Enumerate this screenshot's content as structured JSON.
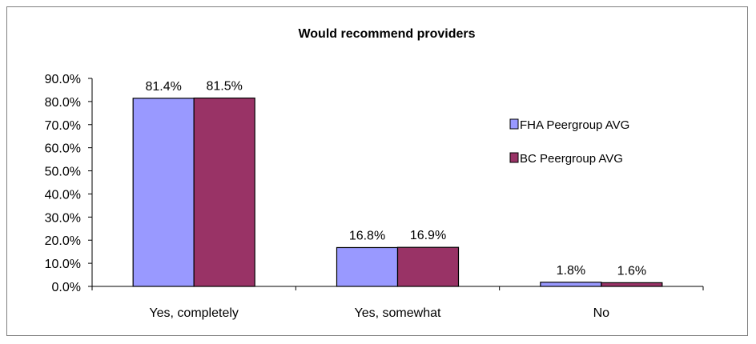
{
  "chart_data": {
    "type": "bar",
    "title": "Would recommend providers",
    "xlabel": "",
    "ylabel": "",
    "categories": [
      "Yes, completely",
      "Yes, somewhat",
      "No"
    ],
    "series": [
      {
        "name": "FHA Peergroup AVG",
        "values": [
          81.4,
          16.8,
          1.8
        ],
        "labels": [
          "81.4%",
          "16.8%",
          "1.8%"
        ],
        "color": "#9999ff"
      },
      {
        "name": "BC Peergroup AVG",
        "values": [
          81.5,
          16.9,
          1.6
        ],
        "labels": [
          "81.5%",
          "16.9%",
          "1.6%"
        ],
        "color": "#993366"
      }
    ],
    "ylim": [
      0,
      90
    ],
    "yticks": [
      "0.0%",
      "10.0%",
      "20.0%",
      "30.0%",
      "40.0%",
      "50.0%",
      "60.0%",
      "70.0%",
      "80.0%",
      "90.0%"
    ],
    "grid": false,
    "legend_position": "right"
  }
}
